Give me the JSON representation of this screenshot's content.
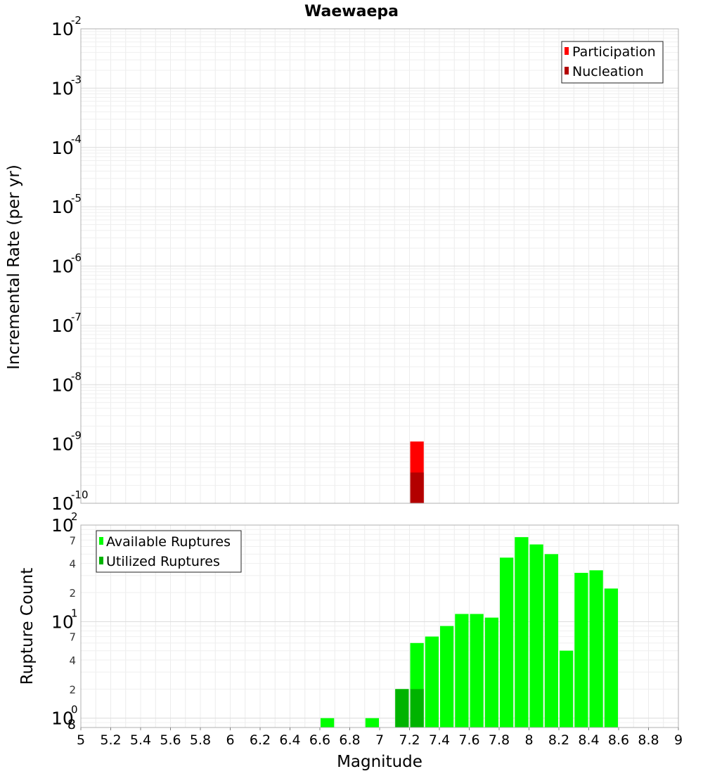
{
  "chart_data": [
    {
      "type": "bar",
      "title": "Waewaepa",
      "ylabel": "Incremental Rate (per yr)",
      "xlabel": "",
      "xlim": [
        5,
        9
      ],
      "ylim": [
        1e-10,
        0.01
      ],
      "yscale": "log",
      "grid": true,
      "legend_position": "top-right",
      "y_tick_labels": [
        {
          "base": "10",
          "exp": "-2",
          "value": 0.01
        },
        {
          "base": "10",
          "exp": "-3",
          "value": 0.001
        },
        {
          "base": "10",
          "exp": "-4",
          "value": 0.0001
        },
        {
          "base": "10",
          "exp": "-5",
          "value": 1e-05
        },
        {
          "base": "10",
          "exp": "-6",
          "value": 1e-06
        },
        {
          "base": "10",
          "exp": "-7",
          "value": 1e-07
        },
        {
          "base": "10",
          "exp": "-8",
          "value": 1e-08
        },
        {
          "base": "10",
          "exp": "-9",
          "value": 1e-09
        },
        {
          "base": "10",
          "exp": "-10",
          "value": 1e-10
        }
      ],
      "series": [
        {
          "name": "Participation",
          "color": "#ff0000",
          "x": [
            7.25
          ],
          "values": [
            1.1e-09
          ]
        },
        {
          "name": "Nucleation",
          "color": "#b30000",
          "x": [
            7.25
          ],
          "values": [
            3.3e-10
          ]
        }
      ]
    },
    {
      "type": "bar",
      "title": "",
      "ylabel": "Rupture Count",
      "xlabel": "Magnitude",
      "xlim": [
        5,
        9
      ],
      "ylim": [
        0.8,
        100
      ],
      "yscale": "log",
      "grid": true,
      "legend_position": "top-left",
      "x_ticks": [
        "5",
        "5.2",
        "5.4",
        "5.6",
        "5.8",
        "6",
        "6.2",
        "6.4",
        "6.6",
        "6.8",
        "7",
        "7.2",
        "7.4",
        "7.6",
        "7.8",
        "8",
        "8.2",
        "8.4",
        "8.6",
        "8.8",
        "9"
      ],
      "y_tick_labels": [
        {
          "base": "10",
          "exp": "2",
          "value": 100
        },
        {
          "base": "10",
          "exp": "1",
          "value": 10
        },
        {
          "base": "10",
          "exp": "0",
          "value": 1
        }
      ],
      "y_minor_labels": [
        {
          "label": "7",
          "value": 70
        },
        {
          "label": "4",
          "value": 40
        },
        {
          "label": "2",
          "value": 20
        },
        {
          "label": "7",
          "value": 7
        },
        {
          "label": "4",
          "value": 4
        },
        {
          "label": "2",
          "value": 2
        },
        {
          "label": "8",
          "value": 0.8
        }
      ],
      "series": [
        {
          "name": "Available Ruptures",
          "color": "#00ff00",
          "x": [
            6.65,
            6.95,
            7.15,
            7.25,
            7.35,
            7.45,
            7.55,
            7.65,
            7.75,
            7.85,
            7.95,
            8.05,
            8.15,
            8.25,
            8.35,
            8.45,
            8.55
          ],
          "values": [
            1,
            1,
            2,
            6,
            7,
            9,
            12,
            12,
            11,
            46,
            75,
            63,
            50,
            5,
            32,
            34,
            22
          ]
        },
        {
          "name": "Utilized Ruptures",
          "color": "#00b300",
          "x": [
            7.15,
            7.25
          ],
          "values": [
            2,
            2
          ]
        }
      ]
    }
  ]
}
